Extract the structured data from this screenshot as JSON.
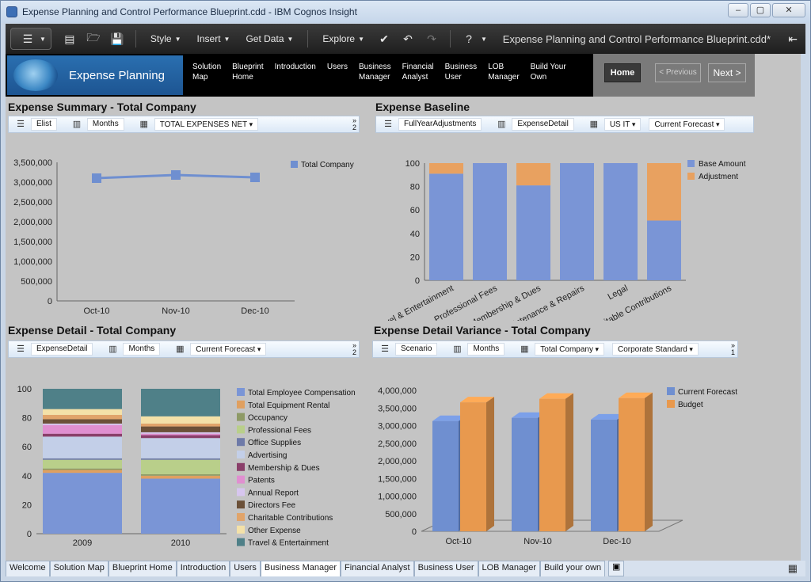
{
  "window": {
    "title": "Expense Planning and Control Performance Blueprint.cdd - IBM Cognos Insight",
    "btn_min": "–",
    "btn_max": "▢",
    "btn_close": "✕"
  },
  "toolbar": {
    "menus": [
      "Style",
      "Insert",
      "Get Data",
      "Explore"
    ],
    "document_name": "Expense Planning and Control Performance Blueprint.cdd*"
  },
  "banner": {
    "title": "Expense Planning",
    "links": [
      "Solution\nMap",
      "Blueprint\nHome",
      "Introduction",
      "Users",
      "Business\nManager",
      "Financial\nAnalyst",
      "Business\nUser",
      "LOB\nManager",
      "Build Your\nOwn"
    ],
    "home": "Home",
    "previous": "< Previous",
    "next": "Next  >"
  },
  "panels": {
    "summary": {
      "title": "Expense Summary - Total Company",
      "fields": [
        "Elist",
        "Months",
        "TOTAL EXPENSES NET"
      ],
      "more": "»\n2"
    },
    "baseline": {
      "title": "Expense Baseline",
      "fields": [
        "FullYearAdjustments",
        "ExpenseDetail",
        "US IT",
        "Current Forecast"
      ]
    },
    "detail": {
      "title": "Expense Detail - Total Company",
      "fields": [
        "ExpenseDetail",
        "Months",
        "Current Forecast"
      ],
      "more": "»\n2"
    },
    "variance": {
      "title": "Expense Detail Variance - Total Company",
      "fields": [
        "Scenario",
        "Months",
        "Total Company",
        "Corporate Standard"
      ],
      "more": "»\n1"
    }
  },
  "chart_data": [
    {
      "type": "line",
      "x": [
        "Oct-10",
        "Nov-10",
        "Dec-10"
      ],
      "series": [
        {
          "name": "Total Company",
          "values": [
            3100000,
            3180000,
            3120000
          ],
          "color": "#6f8fd0"
        }
      ],
      "ylim": [
        0,
        3500000
      ],
      "yticks": [
        "0",
        "500,000",
        "1,000,000",
        "1,500,000",
        "2,000,000",
        "2,500,000",
        "3,000,000",
        "3,500,000"
      ],
      "legend": "top-right"
    },
    {
      "type": "bar",
      "stacked": true,
      "categories": [
        "Travel & Entertainment",
        "Professional Fees",
        "Membership & Dues",
        "Maintenance & Repairs",
        "Legal",
        "Charitable Contributions"
      ],
      "series": [
        {
          "name": "Base Amount",
          "values": [
            91,
            100,
            81,
            100,
            100,
            51
          ],
          "color": "#7a95d6"
        },
        {
          "name": "Adjustment",
          "values": [
            9,
            0,
            19,
            0,
            0,
            49
          ],
          "color": "#e8a160"
        }
      ],
      "ylim": [
        0,
        100
      ],
      "yticks": [
        "0",
        "20",
        "40",
        "60",
        "80",
        "100"
      ],
      "legend": "top-right"
    },
    {
      "type": "bar",
      "stacked": true,
      "categories": [
        "2009",
        "2010"
      ],
      "series": [
        {
          "name": "Total Employee Compensation",
          "values": [
            42,
            38
          ],
          "color": "#7a95d6"
        },
        {
          "name": "Total Equipment Rental",
          "values": [
            2,
            2
          ],
          "color": "#e0a060"
        },
        {
          "name": "Occupancy",
          "values": [
            1,
            1
          ],
          "color": "#8e9a66"
        },
        {
          "name": "Professional Fees",
          "values": [
            6,
            10
          ],
          "color": "#b9cf8a"
        },
        {
          "name": "Office Supplies",
          "values": [
            1,
            1
          ],
          "color": "#6e7aa8"
        },
        {
          "name": "Advertising",
          "values": [
            15,
            14
          ],
          "color": "#c3cfe8"
        },
        {
          "name": "Membership & Dues",
          "values": [
            2,
            2
          ],
          "color": "#8a3f6a"
        },
        {
          "name": "Patents",
          "values": [
            6,
            1
          ],
          "color": "#e08fd0"
        },
        {
          "name": "Annual Report",
          "values": [
            1,
            1
          ],
          "color": "#d7c6ef"
        },
        {
          "name": "Directors Fee",
          "values": [
            3,
            4
          ],
          "color": "#6b5038"
        },
        {
          "name": "Charitable Contributions",
          "values": [
            3,
            2
          ],
          "color": "#e1a46a"
        },
        {
          "name": "Other Expense",
          "values": [
            4,
            5
          ],
          "color": "#f4e1a8"
        },
        {
          "name": "Travel & Entertainment",
          "values": [
            14,
            19
          ],
          "color": "#4f8088"
        }
      ],
      "ylim": [
        0,
        100
      ],
      "yticks": [
        "0",
        "20",
        "40",
        "60",
        "80",
        "100"
      ],
      "legend": "right"
    },
    {
      "type": "bar",
      "categories": [
        "Oct-10",
        "Nov-10",
        "Dec-10"
      ],
      "series": [
        {
          "name": "Current Forecast",
          "values": [
            3130000,
            3220000,
            3170000
          ],
          "color": "#6f8fd0"
        },
        {
          "name": "Budget",
          "values": [
            3660000,
            3760000,
            3780000
          ],
          "color": "#e8994e"
        }
      ],
      "ylim": [
        0,
        4000000
      ],
      "yticks": [
        "0",
        "500,000",
        "1,000,000",
        "1,500,000",
        "2,000,000",
        "2,500,000",
        "3,000,000",
        "3,500,000",
        "4,000,000"
      ],
      "legend": "top-right"
    }
  ],
  "bottom_tabs": [
    "Welcome",
    "Solution Map",
    "Blueprint Home",
    "Introduction",
    "Users",
    "Business Manager",
    "Financial Analyst",
    "Business User",
    "LOB Manager",
    "Build your own"
  ],
  "active_tab": "Business Manager"
}
